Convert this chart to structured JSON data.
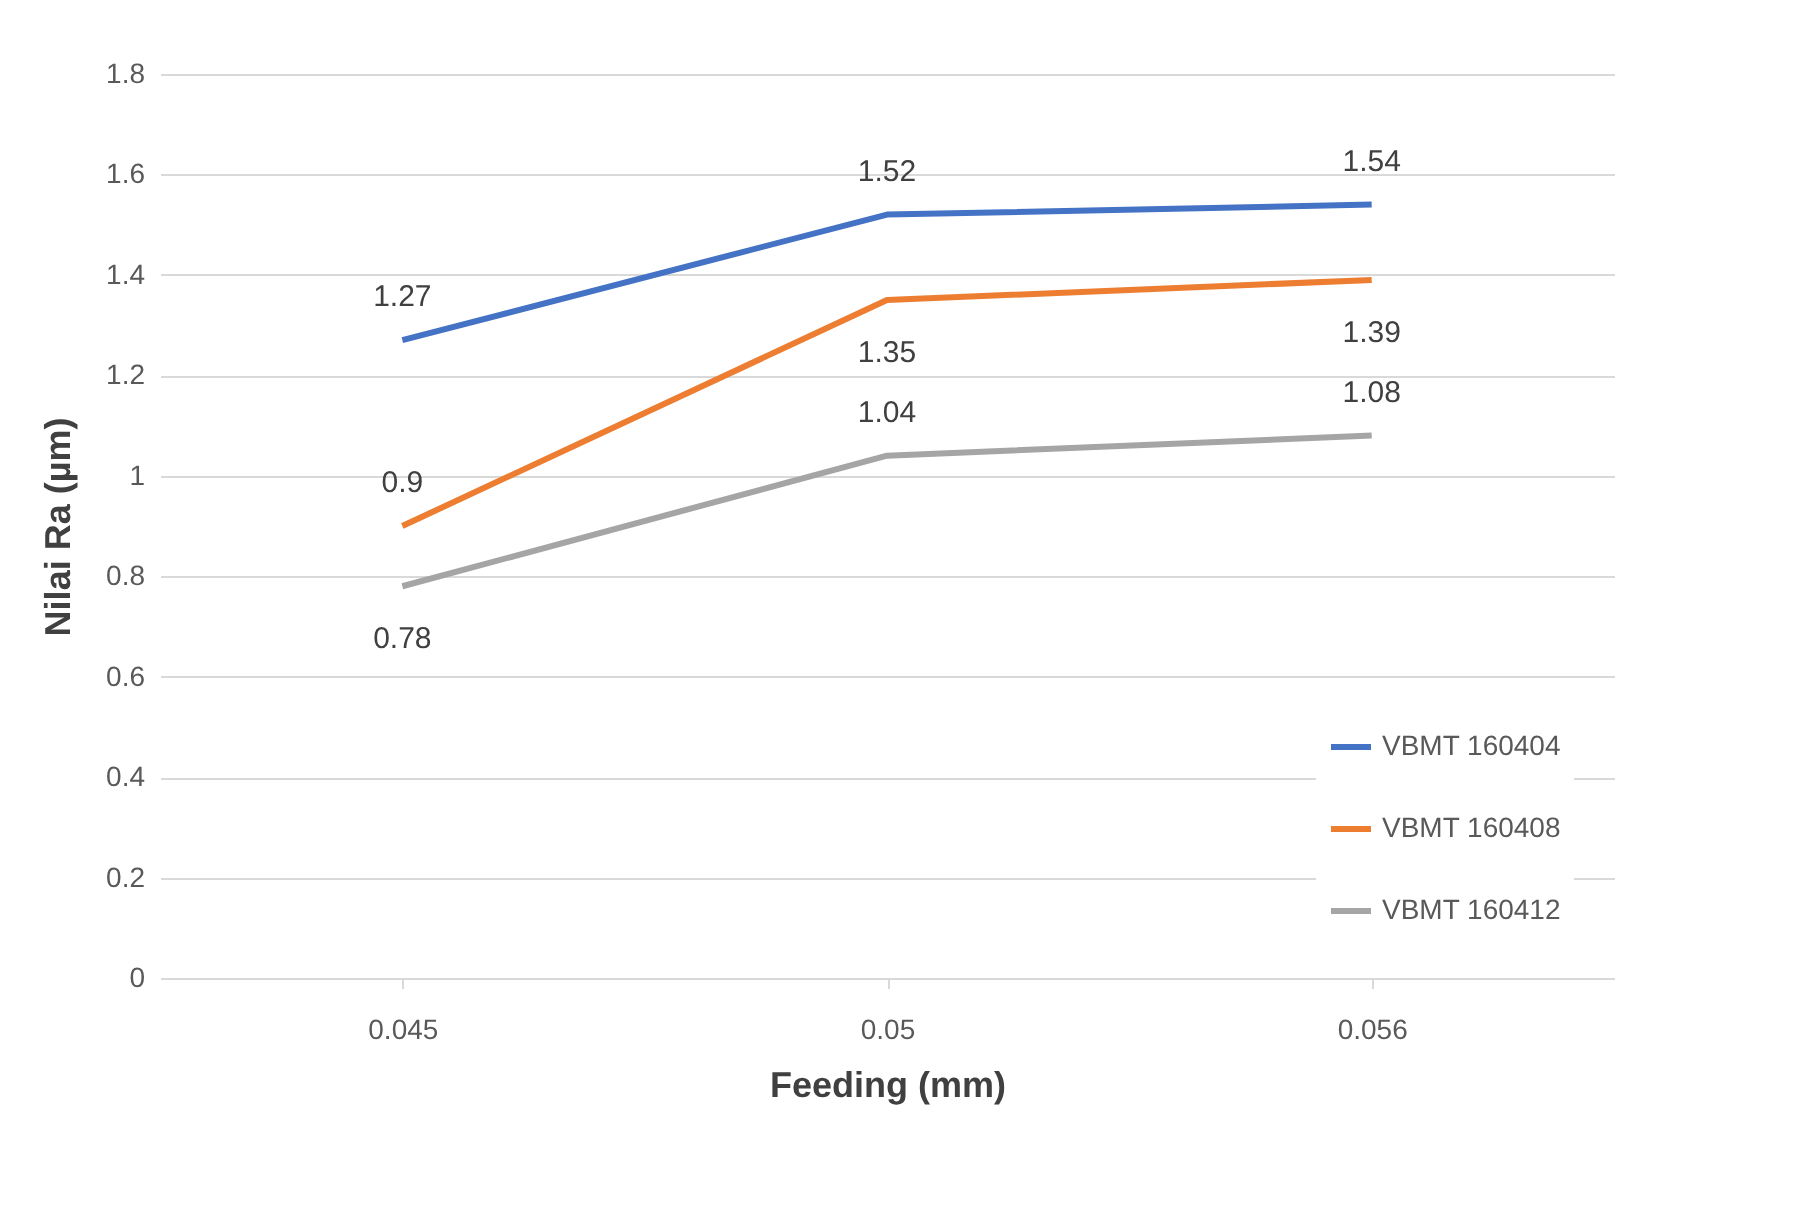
{
  "chart_data": {
    "type": "line",
    "xlabel": "Feeding (mm)",
    "ylabel": "Nilai Ra (µm)",
    "categories": [
      "0.045",
      "0.05",
      "0.056"
    ],
    "series": [
      {
        "name": "VBMT 160404",
        "color": "#4472c4",
        "values": [
          1.27,
          1.52,
          1.54
        ]
      },
      {
        "name": "VBMT 160408",
        "color": "#ed7d31",
        "values": [
          0.9,
          1.35,
          1.39
        ]
      },
      {
        "name": "VBMT 160412",
        "color": "#a5a5a5",
        "values": [
          0.78,
          1.04,
          1.08
        ]
      }
    ],
    "ylim": [
      0,
      1.8
    ],
    "yticks": [
      0,
      0.2,
      0.4,
      0.6,
      0.8,
      1,
      1.2,
      1.4,
      1.6,
      1.8
    ],
    "grid": "y",
    "legend": "bottom right",
    "data_labels": true,
    "marker": "none",
    "line_style": "solid"
  }
}
